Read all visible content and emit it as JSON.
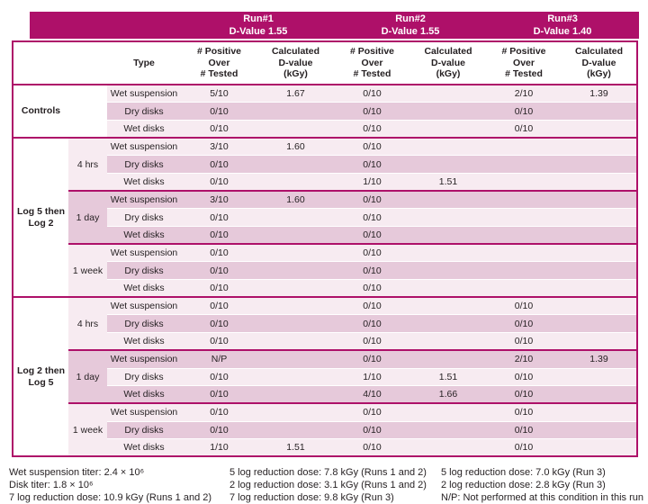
{
  "colors": {
    "magenta": "#AE1069",
    "row_light": "#F7EBF1",
    "row_dark": "#E6C9DA"
  },
  "header": {
    "runs": [
      {
        "title": "Run#1",
        "subtitle": "D-Value 1.55"
      },
      {
        "title": "Run#2",
        "subtitle": "D-Value 1.55"
      },
      {
        "title": "Run#3",
        "subtitle": "D-Value 1.40"
      }
    ],
    "type_label": "Type",
    "positive_label": "# Positive\nOver\n# Tested",
    "calculated_label": "Calculated\nD-value\n(kGy)"
  },
  "sections": [
    {
      "label": "Controls",
      "subgroups": [
        {
          "time": "",
          "rows": [
            {
              "type": "Wet suspension",
              "values": [
                "5/10",
                "1.67",
                "0/10",
                "",
                "2/10",
                "1.39"
              ]
            },
            {
              "type": "Dry disks",
              "values": [
                "0/10",
                "",
                "0/10",
                "",
                "0/10",
                ""
              ]
            },
            {
              "type": "Wet disks",
              "values": [
                "0/10",
                "",
                "0/10",
                "",
                "0/10",
                ""
              ]
            }
          ]
        }
      ]
    },
    {
      "label": "Log 5 then Log 2",
      "subgroups": [
        {
          "time": "4 hrs",
          "rows": [
            {
              "type": "Wet suspension",
              "values": [
                "3/10",
                "1.60",
                "0/10",
                "",
                "",
                ""
              ]
            },
            {
              "type": "Dry disks",
              "values": [
                "0/10",
                "",
                "0/10",
                "",
                "",
                ""
              ]
            },
            {
              "type": "Wet disks",
              "values": [
                "0/10",
                "",
                "1/10",
                "1.51",
                "",
                ""
              ]
            }
          ]
        },
        {
          "time": "1 day",
          "rows": [
            {
              "type": "Wet suspension",
              "values": [
                "3/10",
                "1.60",
                "0/10",
                "",
                "",
                ""
              ]
            },
            {
              "type": "Dry disks",
              "values": [
                "0/10",
                "",
                "0/10",
                "",
                "",
                ""
              ]
            },
            {
              "type": "Wet disks",
              "values": [
                "0/10",
                "",
                "0/10",
                "",
                "",
                ""
              ]
            }
          ]
        },
        {
          "time": "1 week",
          "rows": [
            {
              "type": "Wet suspension",
              "values": [
                "0/10",
                "",
                "0/10",
                "",
                "",
                ""
              ]
            },
            {
              "type": "Dry disks",
              "values": [
                "0/10",
                "",
                "0/10",
                "",
                "",
                ""
              ]
            },
            {
              "type": "Wet disks",
              "values": [
                "0/10",
                "",
                "0/10",
                "",
                "",
                ""
              ]
            }
          ]
        }
      ]
    },
    {
      "label": "Log 2 then Log 5",
      "subgroups": [
        {
          "time": "4 hrs",
          "rows": [
            {
              "type": "Wet suspension",
              "values": [
                "0/10",
                "",
                "0/10",
                "",
                "0/10",
                ""
              ]
            },
            {
              "type": "Dry disks",
              "values": [
                "0/10",
                "",
                "0/10",
                "",
                "0/10",
                ""
              ]
            },
            {
              "type": "Wet disks",
              "values": [
                "0/10",
                "",
                "0/10",
                "",
                "0/10",
                ""
              ]
            }
          ]
        },
        {
          "time": "1 day",
          "rows": [
            {
              "type": "Wet suspension",
              "values": [
                "N/P",
                "",
                "0/10",
                "",
                "2/10",
                "1.39"
              ]
            },
            {
              "type": "Dry disks",
              "values": [
                "0/10",
                "",
                "1/10",
                "1.51",
                "0/10",
                ""
              ]
            },
            {
              "type": "Wet disks",
              "values": [
                "0/10",
                "",
                "4/10",
                "1.66",
                "0/10",
                ""
              ]
            }
          ]
        },
        {
          "time": "1 week",
          "rows": [
            {
              "type": "Wet suspension",
              "values": [
                "0/10",
                "",
                "0/10",
                "",
                "0/10",
                ""
              ]
            },
            {
              "type": "Dry disks",
              "values": [
                "0/10",
                "",
                "0/10",
                "",
                "0/10",
                ""
              ]
            },
            {
              "type": "Wet disks",
              "values": [
                "1/10",
                "1.51",
                "0/10",
                "",
                "0/10",
                ""
              ]
            }
          ]
        }
      ]
    }
  ],
  "footnotes": {
    "col1": [
      "Wet suspension titer: 2.4 × 10⁶",
      "Disk titer: 1.8 × 10⁶",
      "7 log reduction dose: 10.9 kGy (Runs 1 and 2)"
    ],
    "col2": [
      "5 log reduction dose: 7.8 kGy (Runs 1 and 2)",
      "2 log reduction dose: 3.1 kGy (Runs 1 and 2)",
      "7 log reduction dose: 9.8 kGy (Run 3)"
    ],
    "col3": [
      "5 log reduction dose: 7.0 kGy (Run 3)",
      "2 log reduction dose: 2.8 kGy (Run 3)",
      "N/P: Not performed at this condition in this run"
    ]
  }
}
